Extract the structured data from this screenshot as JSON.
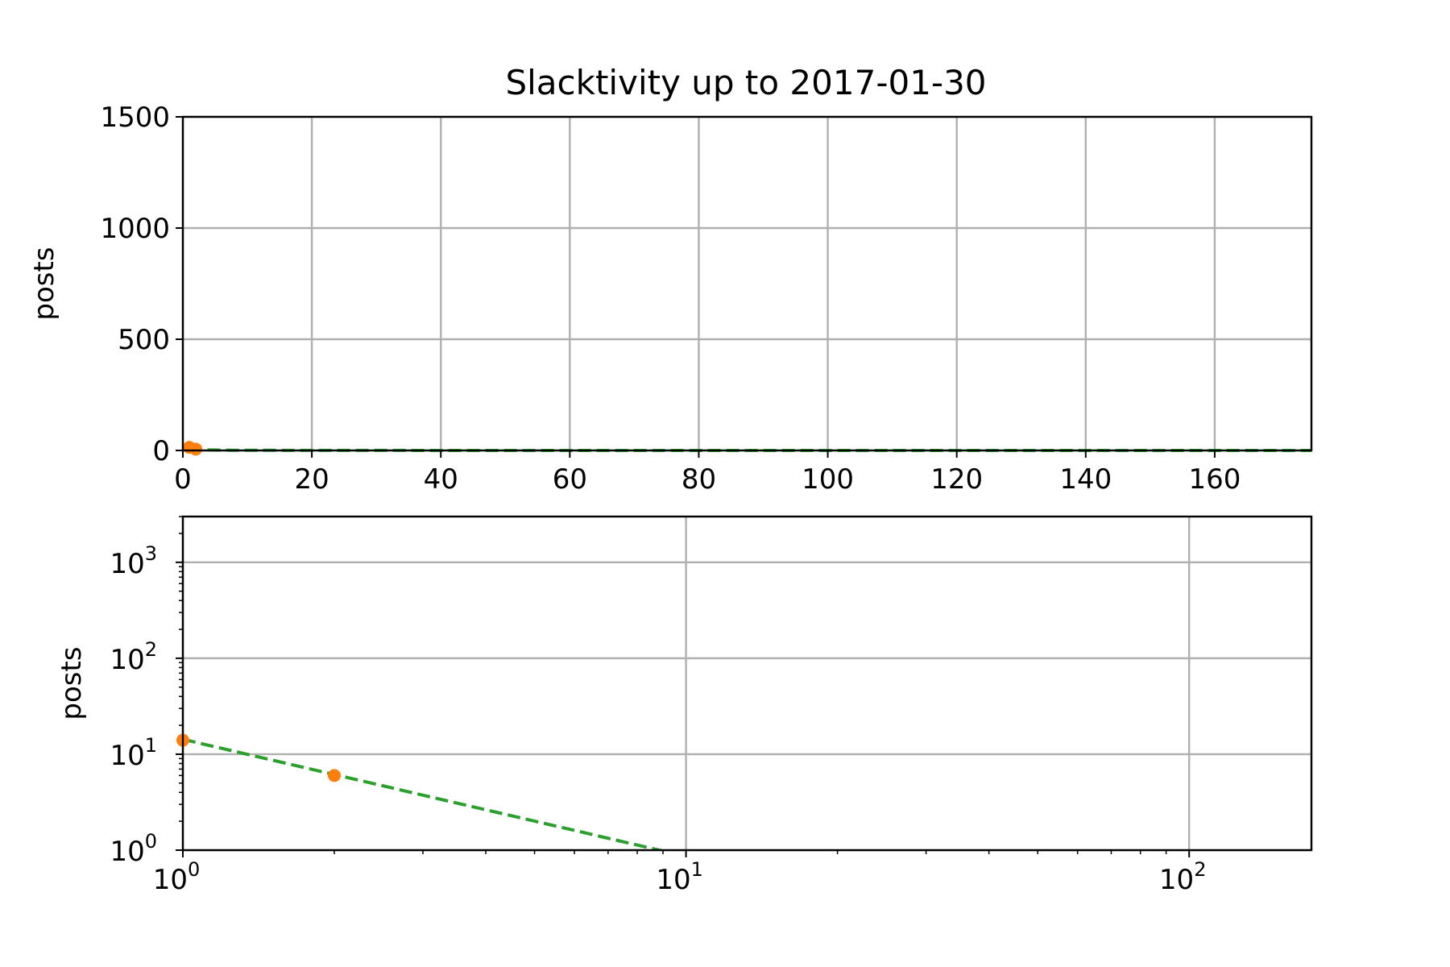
{
  "figure": {
    "title": "Slacktivity up to 2017-01-30"
  },
  "chart_data": [
    {
      "type": "scatter",
      "scale": "linear",
      "title": "Slacktivity up to 2017-01-30",
      "xlabel": "",
      "ylabel": "posts",
      "xlim": [
        0,
        175
      ],
      "ylim": [
        0,
        1500
      ],
      "xticks": [
        0,
        20,
        40,
        60,
        80,
        100,
        120,
        140,
        160
      ],
      "yticks": [
        0,
        500,
        1000,
        1500
      ],
      "grid": true,
      "series": [
        {
          "kind": "points",
          "color": "#ff7f0e",
          "x": [
            1,
            2
          ],
          "y": [
            14,
            6
          ]
        },
        {
          "kind": "dashed-line",
          "color": "#2ca02c",
          "fit": {
            "a": 14.3,
            "b": -1.22
          },
          "x_range": [
            1,
            175
          ]
        }
      ]
    },
    {
      "type": "scatter",
      "scale": "log-log",
      "xlabel": "",
      "ylabel": "posts",
      "xlim": [
        1,
        175
      ],
      "ylim": [
        1,
        3000
      ],
      "xticks": [
        1,
        10,
        100
      ],
      "xtick_labels": [
        {
          "base": "10",
          "exp": "0"
        },
        {
          "base": "10",
          "exp": "1"
        },
        {
          "base": "10",
          "exp": "2"
        }
      ],
      "yticks": [
        1,
        10,
        100,
        1000
      ],
      "ytick_labels": [
        {
          "base": "10",
          "exp": "0"
        },
        {
          "base": "10",
          "exp": "1"
        },
        {
          "base": "10",
          "exp": "2"
        },
        {
          "base": "10",
          "exp": "3"
        }
      ],
      "grid": true,
      "series": [
        {
          "kind": "points",
          "color": "#ff7f0e",
          "x": [
            1,
            2
          ],
          "y": [
            14,
            6
          ]
        },
        {
          "kind": "dashed-line",
          "color": "#2ca02c",
          "fit": {
            "a": 14.3,
            "b": -1.22
          },
          "x_range": [
            1,
            175
          ]
        }
      ]
    }
  ]
}
